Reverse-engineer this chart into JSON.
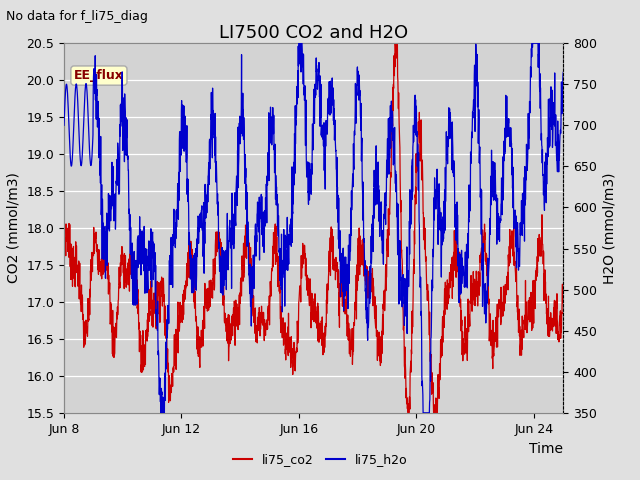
{
  "title": "LI7500 CO2 and H2O",
  "top_left_text": "No data for f_li75_diag",
  "xlabel": "Time",
  "ylabel_left": "CO2 (mmol/m3)",
  "ylabel_right": "H2O (mmol/m3)",
  "ylim_left": [
    15.5,
    20.5
  ],
  "ylim_right": [
    350,
    800
  ],
  "yticks_left": [
    15.5,
    16.0,
    16.5,
    17.0,
    17.5,
    18.0,
    18.5,
    19.0,
    19.5,
    20.0,
    20.5
  ],
  "yticks_right": [
    350,
    400,
    450,
    500,
    550,
    600,
    650,
    700,
    750,
    800
  ],
  "xlim_days": [
    0,
    17
  ],
  "xtick_labels": [
    "Jun 8",
    "Jun 12",
    "Jun 16",
    "Jun 20",
    "Jun 24"
  ],
  "xtick_positions": [
    0,
    4,
    8,
    12,
    16
  ],
  "co2_color": "#cc0000",
  "h2o_color": "#0000cc",
  "bg_color": "#e0e0e0",
  "plot_bg_color": "#d3d3d3",
  "grid_color": "#ffffff",
  "legend_label_co2": "li75_co2",
  "legend_label_h2o": "li75_h2o",
  "ee_flux_label": "EE_flux",
  "ee_flux_bg": "#ffffcc",
  "ee_flux_border": "#aaaaaa",
  "ee_flux_text_color": "#880000",
  "title_fontsize": 13,
  "axis_label_fontsize": 10,
  "tick_label_fontsize": 9,
  "annotation_fontsize": 9
}
